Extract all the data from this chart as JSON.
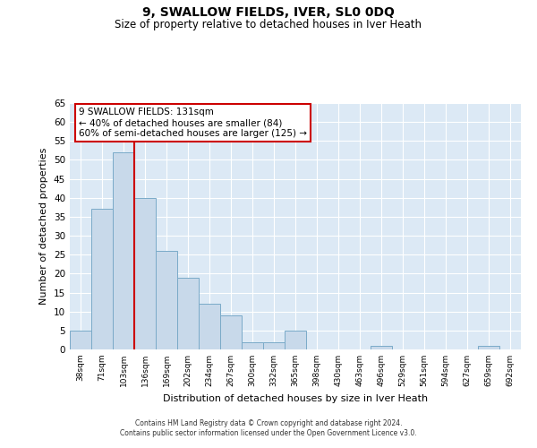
{
  "title": "9, SWALLOW FIELDS, IVER, SL0 0DQ",
  "subtitle": "Size of property relative to detached houses in Iver Heath",
  "xlabel": "Distribution of detached houses by size in Iver Heath",
  "ylabel": "Number of detached properties",
  "categories": [
    "38sqm",
    "71sqm",
    "103sqm",
    "136sqm",
    "169sqm",
    "202sqm",
    "234sqm",
    "267sqm",
    "300sqm",
    "332sqm",
    "365sqm",
    "398sqm",
    "430sqm",
    "463sqm",
    "496sqm",
    "529sqm",
    "561sqm",
    "594sqm",
    "627sqm",
    "659sqm",
    "692sqm"
  ],
  "values": [
    5,
    37,
    52,
    40,
    26,
    19,
    12,
    9,
    2,
    2,
    5,
    0,
    0,
    0,
    1,
    0,
    0,
    0,
    0,
    1,
    0
  ],
  "bar_color": "#c8d9ea",
  "bar_edge_color": "#7aaac8",
  "vline_color": "#cc0000",
  "vline_x": 2.5,
  "annotation_text": "9 SWALLOW FIELDS: 131sqm\n← 40% of detached houses are smaller (84)\n60% of semi-detached houses are larger (125) →",
  "annotation_box_color": "#ffffff",
  "annotation_box_edge": "#cc0000",
  "ylim": [
    0,
    65
  ],
  "yticks": [
    0,
    5,
    10,
    15,
    20,
    25,
    30,
    35,
    40,
    45,
    50,
    55,
    60,
    65
  ],
  "bg_color": "#dce9f5",
  "footer_line1": "Contains HM Land Registry data © Crown copyright and database right 2024.",
  "footer_line2": "Contains public sector information licensed under the Open Government Licence v3.0."
}
